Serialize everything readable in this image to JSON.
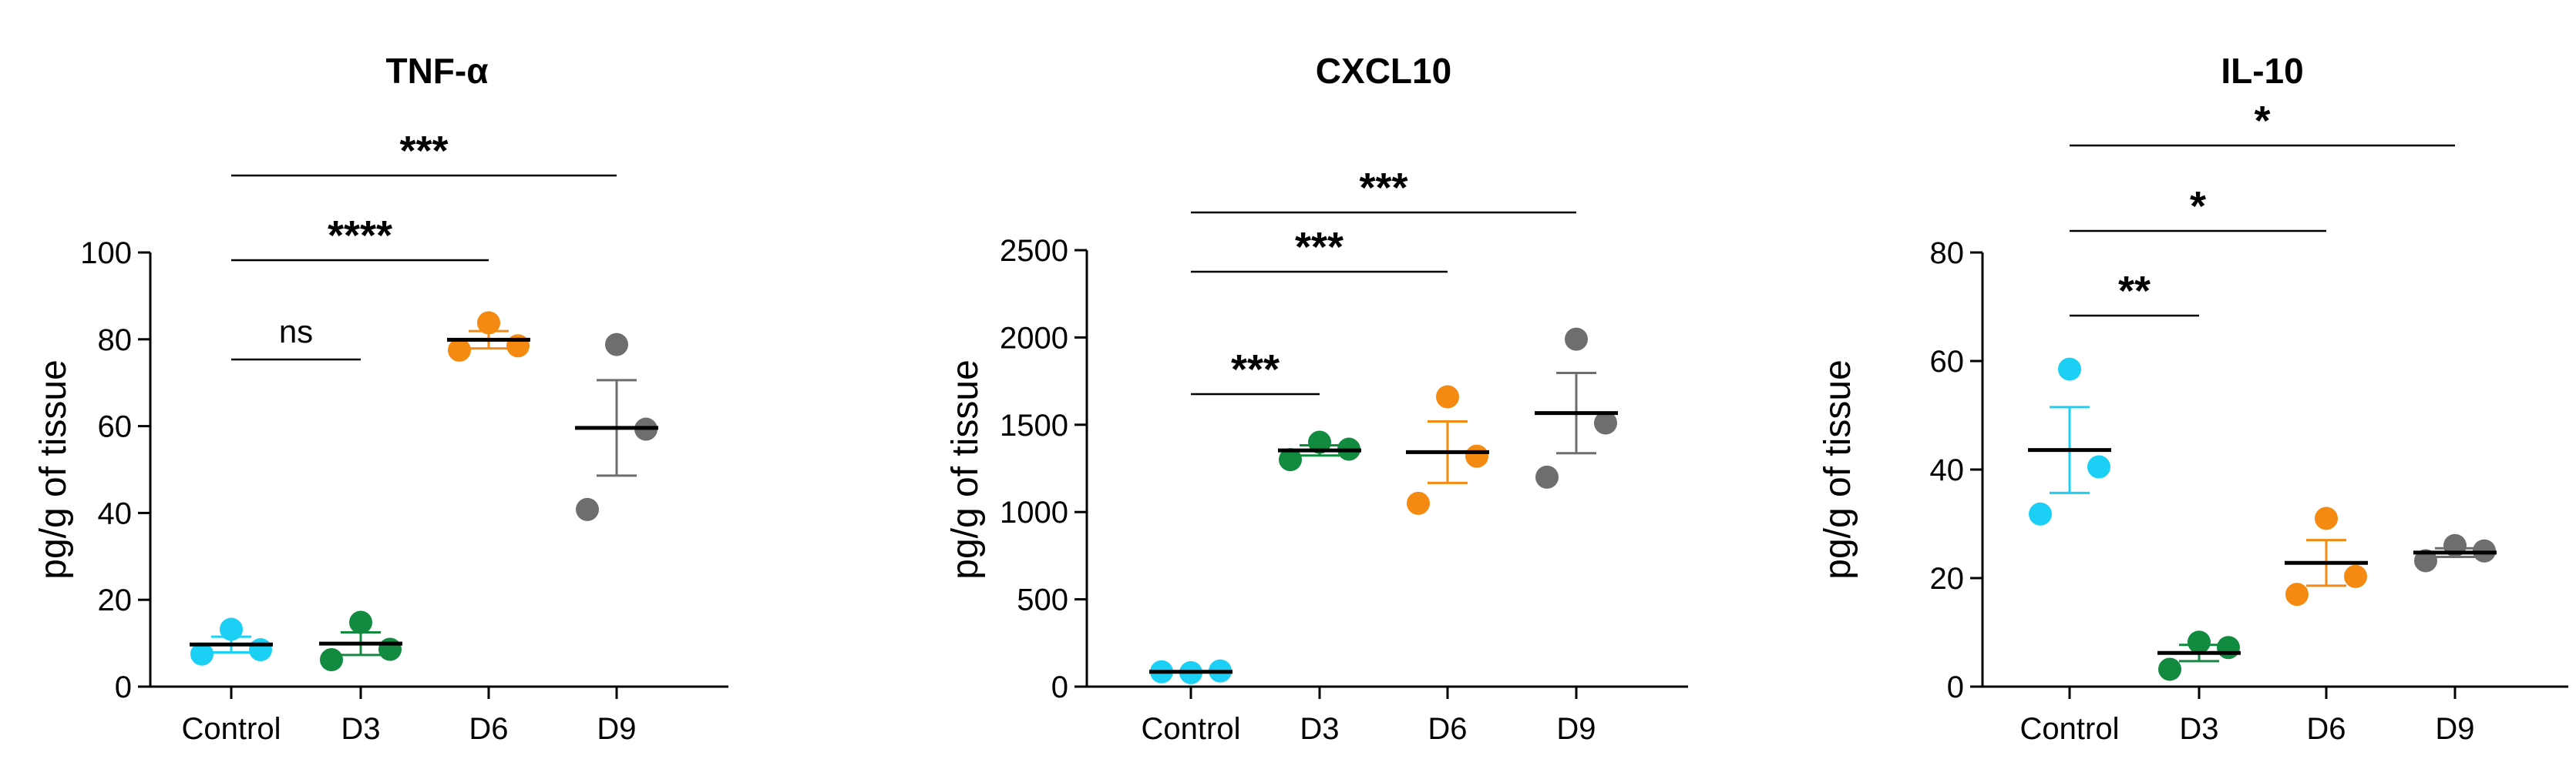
{
  "figure": {
    "colors": {
      "Control": "#1ccff5",
      "D3": "#128a40",
      "D6": "#f58a12",
      "D9": "#6e6e6e",
      "axis": "#000000"
    }
  },
  "chart_data": [
    {
      "type": "scatter",
      "title": "TNF-α",
      "xlabel": "",
      "ylabel": "pg/g of tissue",
      "categories": [
        "Control",
        "D3",
        "D6",
        "D9"
      ],
      "ylim": [
        0,
        100
      ],
      "yticks": [
        0,
        20,
        40,
        60,
        80,
        100
      ],
      "series": [
        {
          "name": "Control",
          "values": [
            13.2,
            7.5,
            8.5
          ],
          "mean": 9.7,
          "sem": 1.8
        },
        {
          "name": "D3",
          "values": [
            14.8,
            6.2,
            8.6
          ],
          "mean": 9.9,
          "sem": 2.6
        },
        {
          "name": "D6",
          "values": [
            83.8,
            77.5,
            78.5
          ],
          "mean": 79.9,
          "sem": 2.0
        },
        {
          "name": "D9",
          "values": [
            78.8,
            40.8,
            59.3
          ],
          "mean": 59.6,
          "sem": 11.0
        }
      ],
      "comparisons": [
        {
          "from": "Control",
          "to": "D3",
          "label": "ns"
        },
        {
          "from": "Control",
          "to": "D6",
          "label": "****"
        },
        {
          "from": "Control",
          "to": "D9",
          "label": "***"
        }
      ]
    },
    {
      "type": "scatter",
      "title": "CXCL10",
      "xlabel": "",
      "ylabel": "pg/g of tissue",
      "categories": [
        "Control",
        "D3",
        "D6",
        "D9"
      ],
      "ylim": [
        0,
        2500
      ],
      "yticks": [
        0,
        500,
        1000,
        1500,
        2000,
        2500
      ],
      "series": [
        {
          "name": "Control",
          "values": [
            80,
            85,
            90
          ],
          "mean": 85,
          "sem": 3
        },
        {
          "name": "D3",
          "values": [
            1400,
            1300,
            1360
          ],
          "mean": 1353,
          "sem": 29
        },
        {
          "name": "D6",
          "values": [
            1660,
            1050,
            1320
          ],
          "mean": 1343,
          "sem": 176
        },
        {
          "name": "D9",
          "values": [
            1990,
            1200,
            1510
          ],
          "mean": 1567,
          "sem": 230
        }
      ],
      "comparisons": [
        {
          "from": "Control",
          "to": "D3",
          "label": "***"
        },
        {
          "from": "Control",
          "to": "D6",
          "label": "***"
        },
        {
          "from": "Control",
          "to": "D9",
          "label": "***"
        }
      ]
    },
    {
      "type": "scatter",
      "title": "IL-10",
      "xlabel": "",
      "ylabel": "pg/g of tissue",
      "categories": [
        "Control",
        "D3",
        "D6",
        "D9"
      ],
      "ylim": [
        0,
        80
      ],
      "yticks": [
        0,
        20,
        40,
        60,
        80
      ],
      "series": [
        {
          "name": "Control",
          "values": [
            58.5,
            31.8,
            40.5
          ],
          "mean": 43.6,
          "sem": 7.9
        },
        {
          "name": "D3",
          "values": [
            8.2,
            3.2,
            7.2
          ],
          "mean": 6.2,
          "sem": 1.5
        },
        {
          "name": "D6",
          "values": [
            31.0,
            17.0,
            20.3
          ],
          "mean": 22.8,
          "sem": 4.2
        },
        {
          "name": "D9",
          "values": [
            26.0,
            23.2,
            25.0
          ],
          "mean": 24.7,
          "sem": 0.8
        }
      ],
      "comparisons": [
        {
          "from": "Control",
          "to": "D3",
          "label": "**"
        },
        {
          "from": "Control",
          "to": "D6",
          "label": "*"
        },
        {
          "from": "Control",
          "to": "D9",
          "label": "*"
        }
      ]
    }
  ]
}
